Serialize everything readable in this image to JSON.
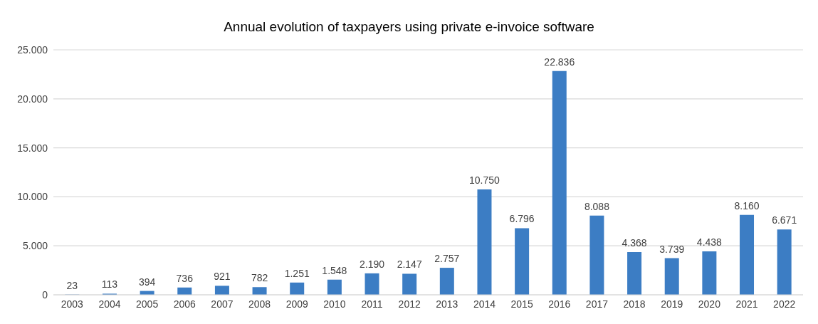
{
  "chart_data": {
    "type": "bar",
    "title": "Annual evolution of taxpayers using private e-invoice software",
    "categories": [
      "2003",
      "2004",
      "2005",
      "2006",
      "2007",
      "2008",
      "2009",
      "2010",
      "2011",
      "2012",
      "2013",
      "2014",
      "2015",
      "2016",
      "2017",
      "2018",
      "2019",
      "2020",
      "2021",
      "2022"
    ],
    "values": [
      23,
      113,
      394,
      736,
      921,
      782,
      1251,
      1548,
      2190,
      2147,
      2757,
      10750,
      6796,
      22836,
      8088,
      4368,
      3739,
      4438,
      8160,
      6671
    ],
    "value_labels": [
      "23",
      "113",
      "394",
      "736",
      "921",
      "782",
      "1.251",
      "1.548",
      "2.190",
      "2.147",
      "2.757",
      "10.750",
      "6.796",
      "22.836",
      "8.088",
      "4.368",
      "3.739",
      "4.438",
      "8.160",
      "6.671"
    ],
    "color": "#3c7dc4",
    "ylim": [
      0,
      25000
    ],
    "yticks": [
      0,
      {
        "value": 5000,
        "label": "5.000"
      },
      {
        "value": 10000,
        "label": "10.000"
      },
      {
        "value": 15000,
        "label": "15.000"
      },
      {
        "value": 20000,
        "label": "20.000"
      },
      {
        "value": 25000,
        "label": "25.000"
      }
    ],
    "grid": "y"
  }
}
